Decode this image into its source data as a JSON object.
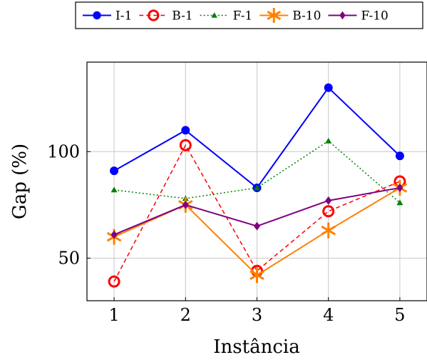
{
  "chart_data": {
    "type": "line",
    "xlabel": "Instância",
    "ylabel": "Gap (%)",
    "x": [
      1,
      2,
      3,
      4,
      5
    ],
    "xlim": [
      0.62,
      5.38
    ],
    "ylim": [
      30,
      142
    ],
    "yticks": [
      50,
      100
    ],
    "grid": true,
    "legend_position": "top",
    "series": [
      {
        "name": "I-1",
        "values": [
          91,
          110,
          83,
          130,
          98
        ],
        "color": "#0000ff",
        "dash": "solid",
        "marker": "circle-filled"
      },
      {
        "name": "B-1",
        "values": [
          39,
          103,
          44,
          72,
          86
        ],
        "color": "#ff0000",
        "dash": "dashed",
        "marker": "circle-open"
      },
      {
        "name": "F-1",
        "values": [
          82,
          78,
          83,
          105,
          76
        ],
        "color": "#008000",
        "dash": "dotted",
        "marker": "triangle"
      },
      {
        "name": "B-10",
        "values": [
          60,
          75,
          42,
          63,
          83
        ],
        "color": "#ff8000",
        "dash": "solid",
        "marker": "asterisk"
      },
      {
        "name": "F-10",
        "values": [
          61,
          75,
          65,
          77,
          83
        ],
        "color": "#800080",
        "dash": "solid",
        "marker": "diamond"
      }
    ]
  }
}
